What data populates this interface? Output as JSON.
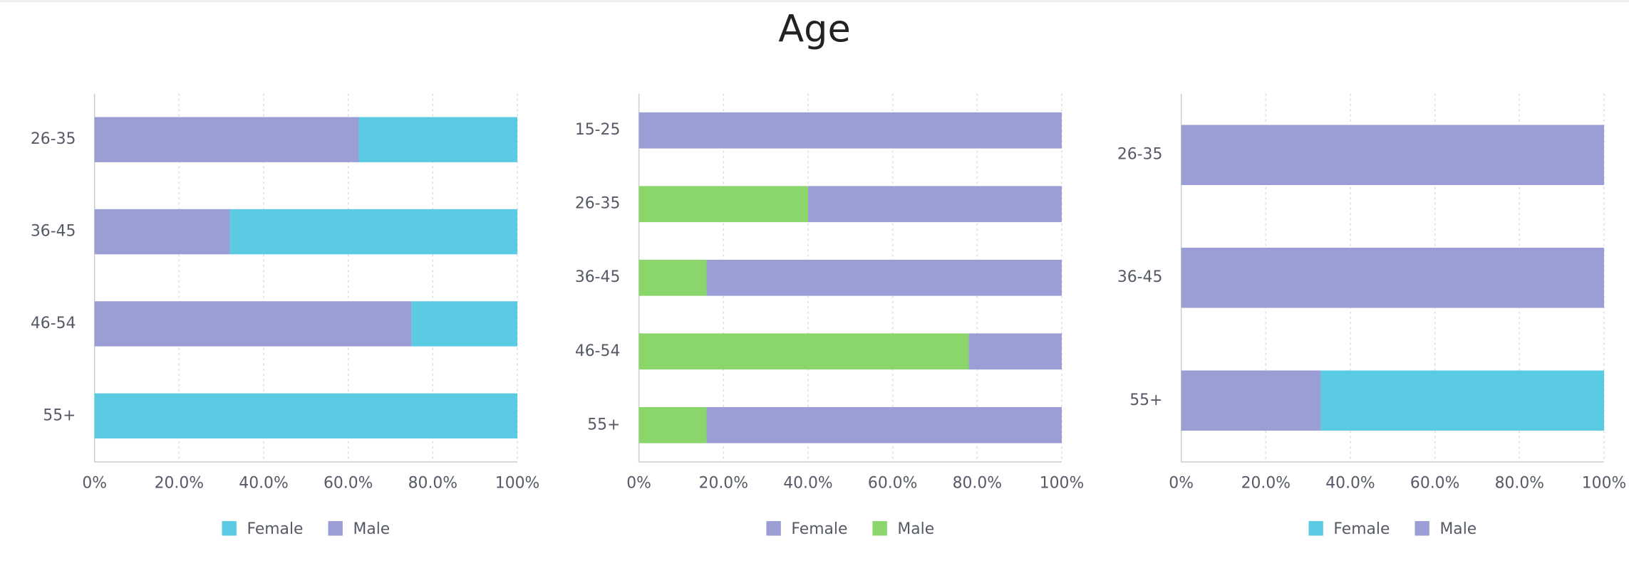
{
  "header": {
    "title": "Age"
  },
  "chart_data": [
    {
      "type": "stacked-bar-horizontal",
      "categories": [
        "26-35",
        "36-45",
        "46-54",
        "55+"
      ],
      "series": [
        {
          "name": "Female",
          "color": "#5bcbe3",
          "values": [
            37.5,
            68,
            25,
            100
          ]
        },
        {
          "name": "Male",
          "color": "#9b9ed5",
          "values": [
            62.5,
            32,
            75,
            0
          ]
        }
      ],
      "xlim": [
        0,
        100
      ],
      "xticks": [
        {
          "value": 0,
          "label": "0%"
        },
        {
          "value": 20,
          "label": "20.0%"
        },
        {
          "value": 40,
          "label": "40.0%"
        },
        {
          "value": 60,
          "label": "60.0%"
        },
        {
          "value": 80,
          "label": "80.0%"
        },
        {
          "value": 100,
          "label": "100%"
        }
      ],
      "grid": true
    },
    {
      "type": "stacked-bar-horizontal",
      "categories": [
        "15-25",
        "26-35",
        "36-45",
        "46-54",
        "55+"
      ],
      "series": [
        {
          "name": "Female",
          "color": "#9b9ed5",
          "values": [
            100,
            60,
            84,
            22,
            84
          ]
        },
        {
          "name": "Male",
          "color": "#8ad66a",
          "values": [
            0,
            40,
            16,
            78,
            16
          ]
        }
      ],
      "xlim": [
        0,
        100
      ],
      "xticks": [
        {
          "value": 0,
          "label": "0%"
        },
        {
          "value": 20,
          "label": "20.0%"
        },
        {
          "value": 40,
          "label": "40.0%"
        },
        {
          "value": 60,
          "label": "60.0%"
        },
        {
          "value": 80,
          "label": "80.0%"
        },
        {
          "value": 100,
          "label": "100%"
        }
      ],
      "grid": true
    },
    {
      "type": "stacked-bar-horizontal",
      "categories": [
        "26-35",
        "36-45",
        "55+"
      ],
      "series": [
        {
          "name": "Female",
          "color": "#5bcbe3",
          "values": [
            0,
            0,
            67
          ]
        },
        {
          "name": "Male",
          "color": "#9b9ed5",
          "values": [
            100,
            100,
            33
          ]
        }
      ],
      "xlim": [
        0,
        100
      ],
      "xticks": [
        {
          "value": 0,
          "label": "0%"
        },
        {
          "value": 20,
          "label": "20.0%"
        },
        {
          "value": 40,
          "label": "40.0%"
        },
        {
          "value": 60,
          "label": "60.0%"
        },
        {
          "value": 80,
          "label": "80.0%"
        },
        {
          "value": 100,
          "label": "100%"
        }
      ],
      "grid": true
    }
  ]
}
